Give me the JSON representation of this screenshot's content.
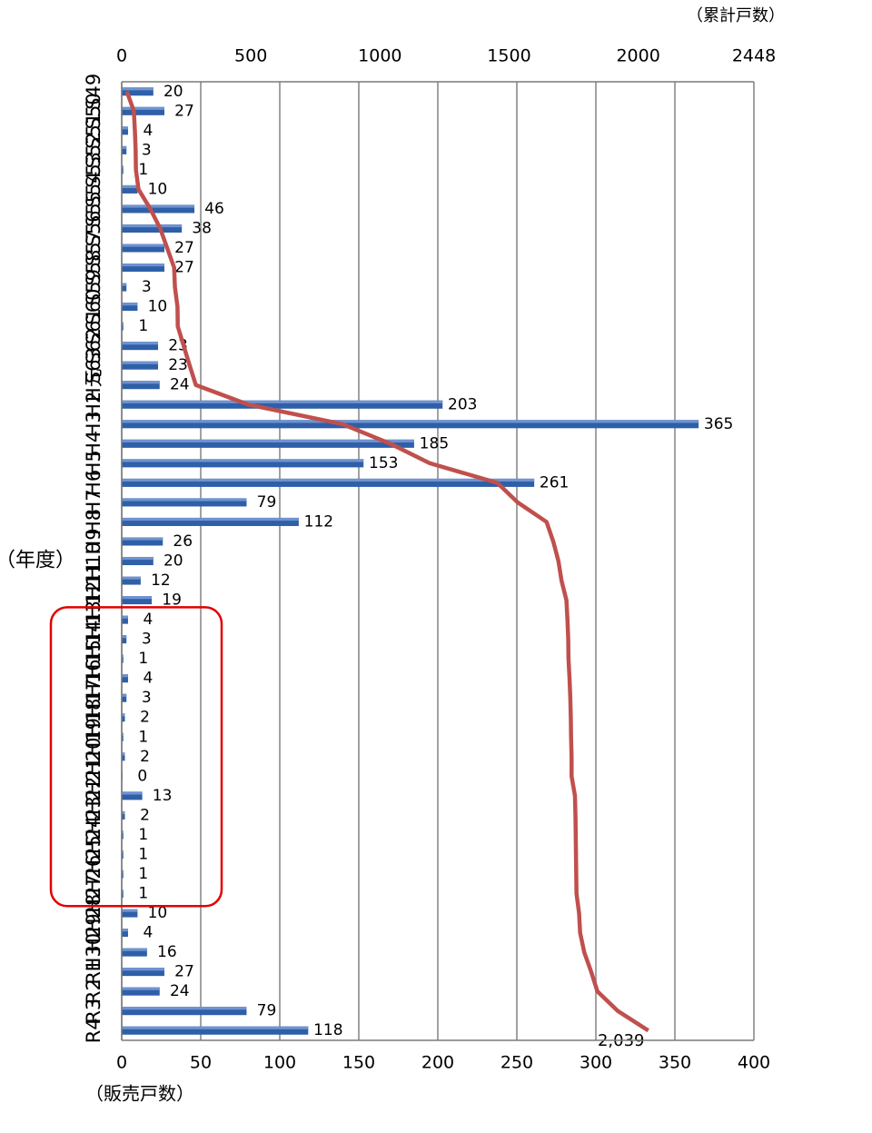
{
  "chart_data": {
    "type": "bar",
    "orientation": "rotated 90 degrees clockwise (combo bar + line)",
    "xlabel": "（年度）",
    "ylabel": "（販売戸数）",
    "y2label": "（累計戸数）",
    "ylim": [
      0,
      400
    ],
    "yticks": [
      "0",
      "50",
      "100",
      "150",
      "200",
      "250",
      "300",
      "350",
      "400"
    ],
    "y2lim": [
      0,
      2448
    ],
    "y2ticks": [
      "0",
      "500",
      "1000",
      "1500",
      "2000",
      "2448"
    ],
    "grid": true,
    "categories": [
      "S49",
      "S50",
      "S51",
      "S52",
      "S53",
      "S54",
      "S55",
      "S56",
      "S57",
      "S58",
      "S59",
      "S60",
      "S61",
      "S62",
      "S63",
      "H元",
      "H2",
      "H3",
      "H4",
      "H5",
      "H6",
      "H7",
      "H8",
      "H9",
      "H10",
      "H11",
      "H12",
      "H13",
      "H14",
      "H15",
      "H16",
      "H17",
      "H18",
      "H19",
      "H20",
      "H21",
      "H22",
      "H23",
      "H24",
      "H25",
      "H26",
      "H27",
      "H28",
      "H29",
      "H30",
      "R1",
      "R2",
      "R3",
      "R4"
    ],
    "series": [
      {
        "type": "bar",
        "axis": "left",
        "color": "#2e5fa8",
        "values": [
          20,
          27,
          4,
          3,
          1,
          10,
          46,
          38,
          27,
          27,
          3,
          10,
          1,
          23,
          23,
          24,
          203,
          365,
          185,
          153,
          261,
          79,
          112,
          26,
          20,
          12,
          19,
          4,
          3,
          1,
          4,
          3,
          2,
          1,
          2,
          0,
          13,
          2,
          1,
          1,
          1,
          1,
          10,
          4,
          16,
          27,
          24,
          79,
          118
        ],
        "labels": [
          "20",
          "27",
          "4",
          "3",
          "1",
          "10",
          "46",
          "38",
          "27",
          "27",
          "3",
          "10",
          "1",
          "23",
          "23",
          "24",
          "203",
          "365",
          "185",
          "153",
          "261",
          "79",
          "112",
          "26",
          "20",
          "12",
          "19",
          "4",
          "3",
          "1",
          "4",
          "3",
          "2",
          "1",
          "2",
          "0",
          "13",
          "2",
          "1",
          "1",
          "1",
          "1",
          "10",
          "4",
          "16",
          "27",
          "24",
          "79",
          "118"
        ]
      },
      {
        "type": "line",
        "axis": "right",
        "color": "#c0504d",
        "values": [
          20,
          47,
          51,
          54,
          55,
          65,
          111,
          149,
          176,
          203,
          206,
          216,
          217,
          240,
          263,
          287,
          490,
          855,
          1040,
          1193,
          1454,
          1533,
          1645,
          1671,
          1691,
          1703,
          1722,
          1726,
          1729,
          1730,
          1734,
          1737,
          1739,
          1740,
          1742,
          1742,
          1755,
          1757,
          1758,
          1759,
          1760,
          1761,
          1771,
          1775,
          1791,
          1818,
          1842,
          1921,
          2039
        ],
        "end_label": "2,039"
      }
    ],
    "highlight": {
      "from": "H13",
      "to": "H27",
      "color": "#e00000"
    }
  }
}
